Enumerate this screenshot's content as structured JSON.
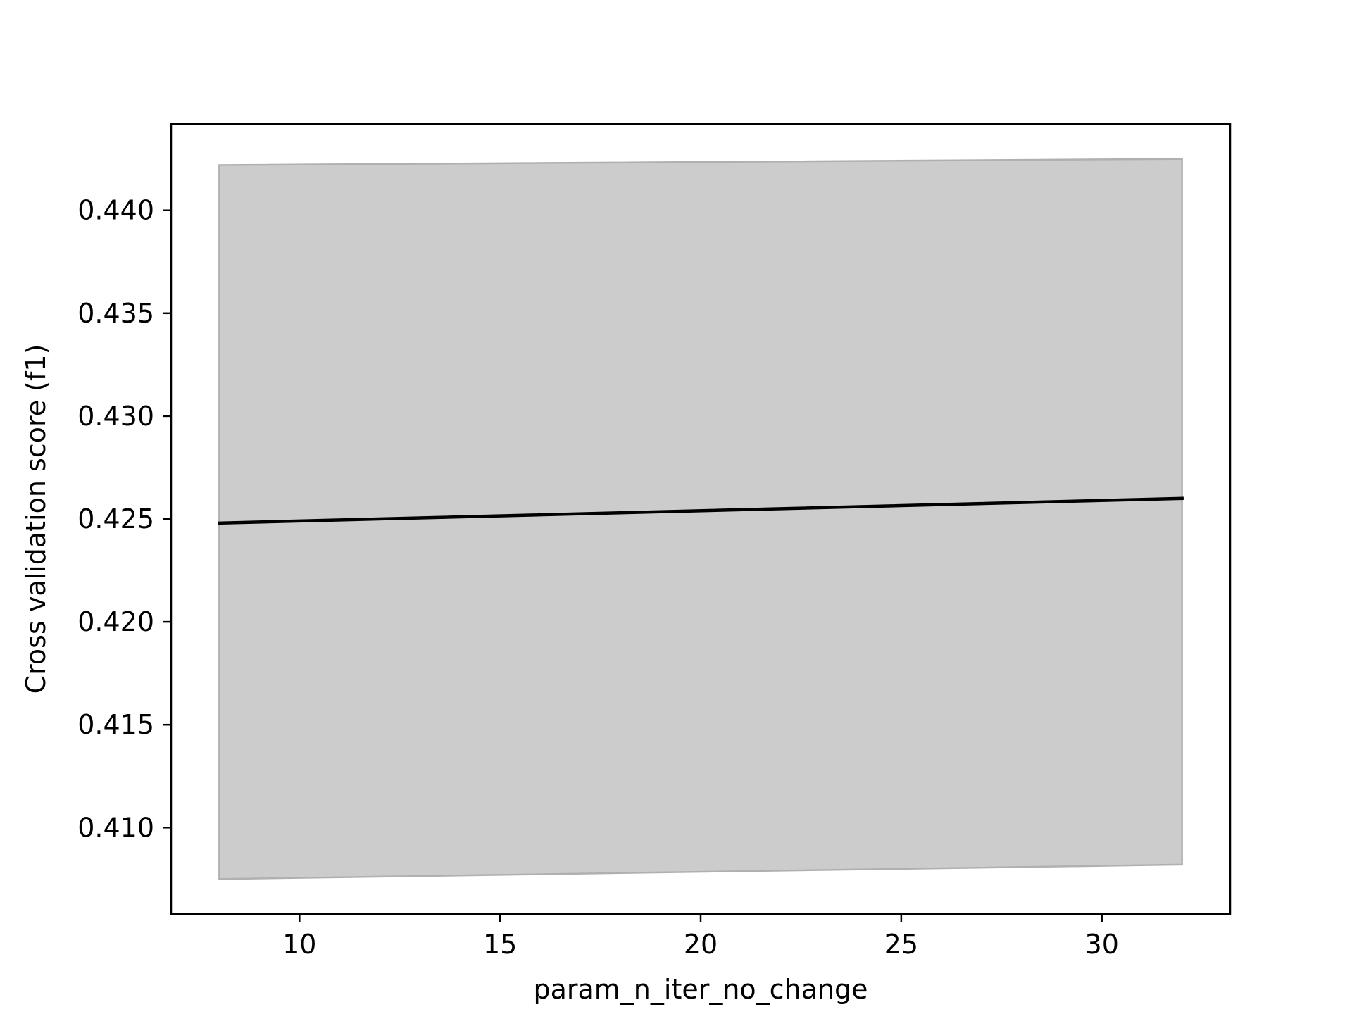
{
  "chart_data": {
    "type": "line",
    "title": "",
    "xlabel": "param_n_iter_no_change",
    "ylabel": "Cross validation score (f1)",
    "xlim": [
      6.8,
      33.2
    ],
    "ylim": [
      0.4058,
      0.4442
    ],
    "xticks": [
      10,
      15,
      20,
      25,
      30
    ],
    "xtick_labels": [
      "10",
      "15",
      "20",
      "25",
      "30"
    ],
    "yticks": [
      0.41,
      0.415,
      0.42,
      0.425,
      0.43,
      0.435,
      0.44
    ],
    "ytick_labels": [
      "0.410",
      "0.415",
      "0.420",
      "0.425",
      "0.430",
      "0.435",
      "0.440"
    ],
    "grid": false,
    "legend": "none",
    "series": [
      {
        "x": [
          8,
          32
        ],
        "mean": [
          0.4248,
          0.426
        ],
        "lower": [
          0.4075,
          0.4082
        ],
        "upper": [
          0.4422,
          0.4425
        ],
        "line_color": "#000000",
        "band_color": "#cccccc",
        "band_edge_color": "#b0b0b0"
      }
    ]
  }
}
